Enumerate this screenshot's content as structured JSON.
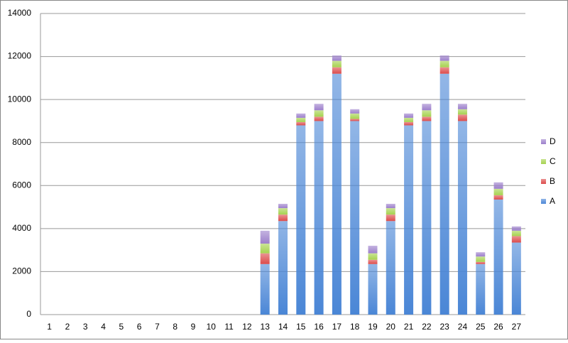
{
  "chart_data": {
    "type": "stacked-bar",
    "categories": [
      "1",
      "2",
      "3",
      "4",
      "5",
      "6",
      "7",
      "8",
      "9",
      "10",
      "11",
      "12",
      "13",
      "14",
      "15",
      "16",
      "17",
      "18",
      "19",
      "20",
      "21",
      "22",
      "23",
      "24",
      "25",
      "26",
      "27"
    ],
    "series": [
      {
        "name": "A",
        "color": "#4a86d6",
        "values": [
          0,
          0,
          0,
          0,
          0,
          0,
          0,
          0,
          0,
          0,
          0,
          0,
          2350,
          4350,
          8800,
          9000,
          11200,
          9000,
          2350,
          4350,
          8800,
          9000,
          11200,
          9000,
          2350,
          5350,
          3350
        ]
      },
      {
        "name": "B",
        "color": "#dc4b4b",
        "values": [
          0,
          0,
          0,
          0,
          0,
          0,
          0,
          0,
          0,
          0,
          0,
          0,
          500,
          300,
          150,
          200,
          300,
          100,
          200,
          300,
          150,
          200,
          300,
          300,
          100,
          200,
          300
        ]
      },
      {
        "name": "C",
        "color": "#a6d24f",
        "values": [
          0,
          0,
          0,
          0,
          0,
          0,
          0,
          0,
          0,
          0,
          0,
          0,
          450,
          300,
          200,
          300,
          300,
          250,
          300,
          300,
          200,
          300,
          300,
          250,
          250,
          300,
          250
        ]
      },
      {
        "name": "D",
        "color": "#9c7fcb",
        "values": [
          0,
          0,
          0,
          0,
          0,
          0,
          0,
          0,
          0,
          0,
          0,
          0,
          600,
          200,
          200,
          300,
          250,
          200,
          350,
          200,
          200,
          300,
          250,
          250,
          200,
          300,
          200
        ]
      }
    ],
    "ylim": [
      0,
      14000
    ],
    "yticks": [
      0,
      2000,
      4000,
      6000,
      8000,
      10000,
      12000,
      14000
    ],
    "grid": true,
    "legend": "right"
  }
}
